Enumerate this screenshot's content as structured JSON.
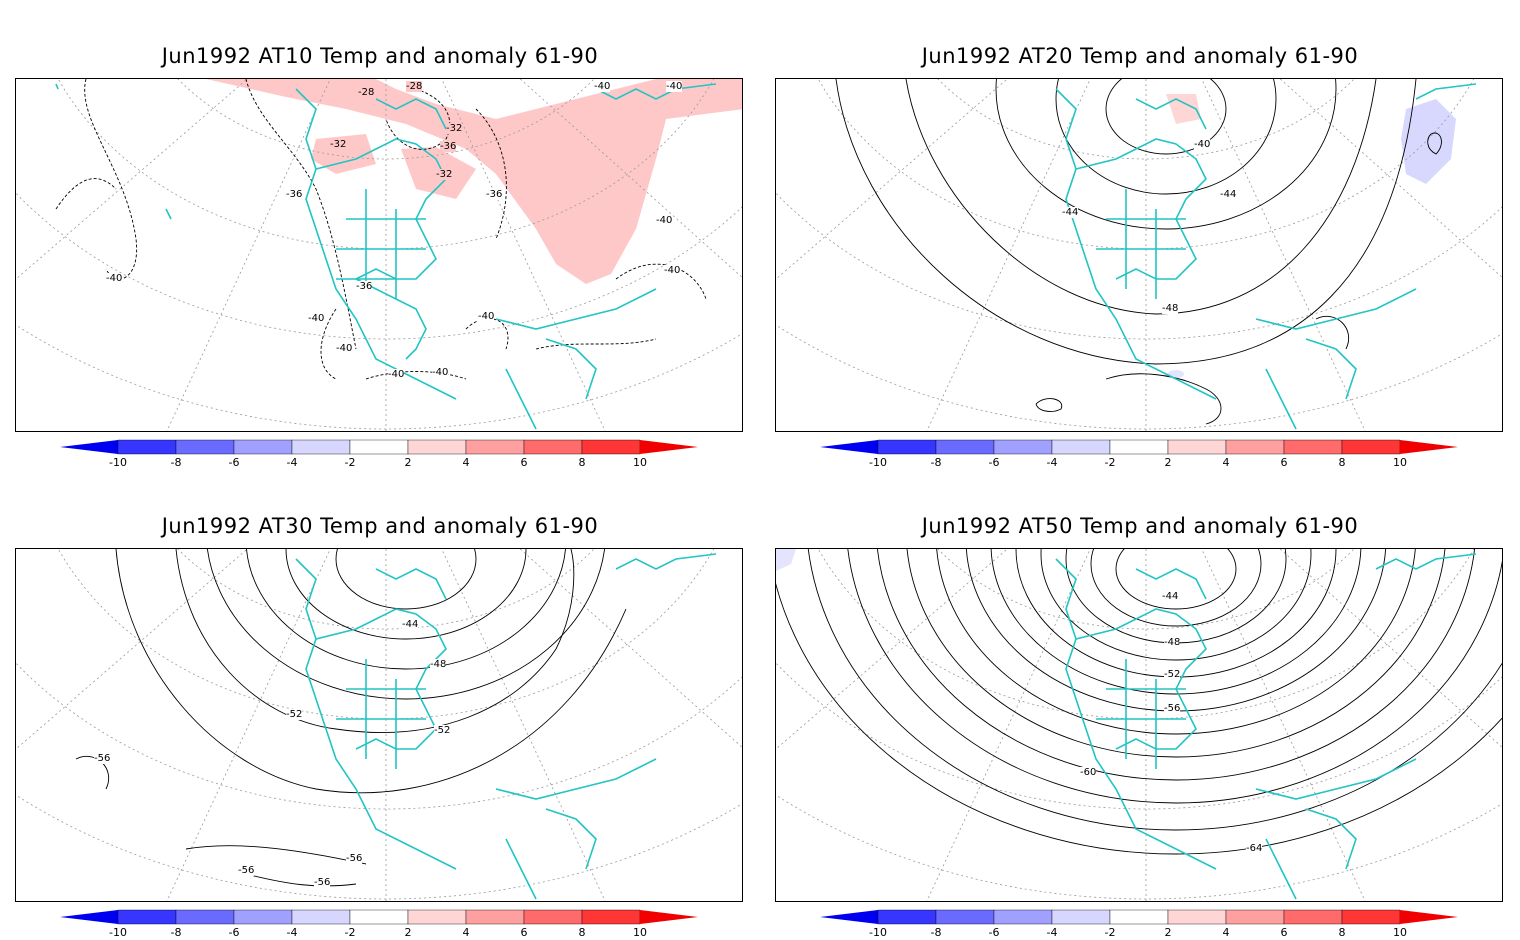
{
  "panels": [
    {
      "title": "Jun1992 AT10 Temp and anomaly 61-90",
      "contour_labels": [
        "-28",
        "-28",
        "-32",
        "-32",
        "-32",
        "-36",
        "-36",
        "-36",
        "-36",
        "-40",
        "-40",
        "-40",
        "-40",
        "-40",
        "-40",
        "-40",
        "-40",
        "-40",
        "-40"
      ],
      "anomaly": "warm"
    },
    {
      "title": "Jun1992 AT20 Temp and anomaly 61-90",
      "contour_labels": [
        "-40",
        "-44",
        "-44",
        "-48"
      ],
      "anomaly": "cool"
    },
    {
      "title": "Jun1992 AT30 Temp and anomaly 61-90",
      "contour_labels": [
        "-44",
        "-48",
        "-52",
        "-52",
        "-56",
        "-56",
        "-56",
        "-56"
      ],
      "anomaly": "none"
    },
    {
      "title": "Jun1992 AT50 Temp and anomaly 61-90",
      "contour_labels": [
        "-44",
        "-48",
        "-52",
        "-56",
        "-60",
        "-64"
      ],
      "anomaly": "faint-cool"
    }
  ],
  "colorbar": {
    "ticks": [
      "-10",
      "-8",
      "-6",
      "-4",
      "-2",
      "2",
      "4",
      "6",
      "8",
      "10"
    ],
    "colors": [
      "#0000f0",
      "#3636ff",
      "#6a6aff",
      "#a0a0ff",
      "#d6d6ff",
      "#ffffff",
      "#ffd6d6",
      "#ffa0a0",
      "#ff6a6a",
      "#ff3636",
      "#f00000"
    ]
  },
  "colors": {
    "coastline": "#22c4c4",
    "warm_anomaly": "#ffc8c8",
    "cool_anomaly": "#d8d8ff",
    "contour": "#000000",
    "grid": "#999999"
  }
}
